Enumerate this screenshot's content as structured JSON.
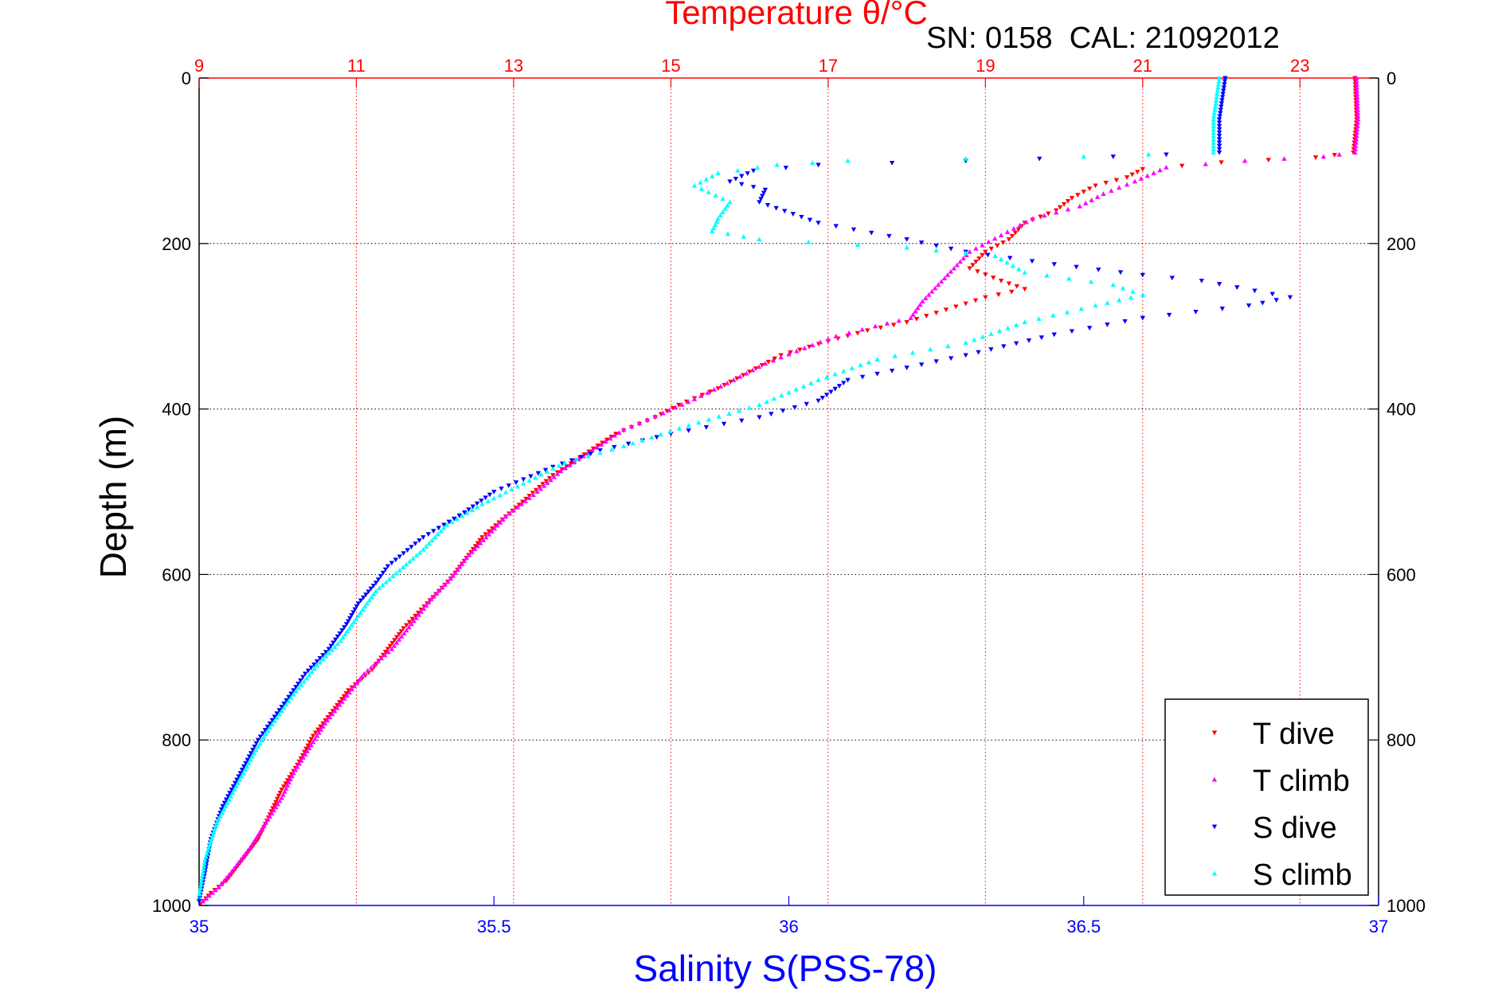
{
  "chart_data": {
    "type": "scatter",
    "top_axis": {
      "label": "Temperature θ/°C",
      "range": [
        9,
        24
      ],
      "ticks": [
        "9",
        "11",
        "13",
        "15",
        "17",
        "19",
        "21",
        "23"
      ],
      "color": "#ff0000"
    },
    "bottom_axis": {
      "label": "Salinity S(PSS-78)",
      "range": [
        35,
        37
      ],
      "ticks": [
        "35",
        "35.5",
        "36",
        "36.5",
        "37"
      ],
      "color": "#0000ff"
    },
    "y_axis": {
      "label": "Depth (m)",
      "range": [
        0,
        1000
      ],
      "reversed": true,
      "ticks": [
        "0",
        "200",
        "400",
        "600",
        "800",
        "1000"
      ]
    },
    "annotation": "SN: 0158  CAL: 21092012",
    "grid": true,
    "legend_position": "bottom-right",
    "series": [
      {
        "name": "T dive",
        "axis": "temperature",
        "color": "#ff0000",
        "marker": "triangle-down",
        "points": [
          [
            23.7,
            0
          ],
          [
            23.72,
            50
          ],
          [
            23.68,
            90
          ],
          [
            23.2,
            96
          ],
          [
            22.0,
            102
          ],
          [
            21.0,
            110
          ],
          [
            20.8,
            120
          ],
          [
            20.4,
            130
          ],
          [
            20.1,
            145
          ],
          [
            19.9,
            160
          ],
          [
            19.5,
            175
          ],
          [
            19.3,
            195
          ],
          [
            19.0,
            210
          ],
          [
            18.8,
            230
          ],
          [
            19.2,
            245
          ],
          [
            19.5,
            255
          ],
          [
            19.0,
            265
          ],
          [
            18.5,
            280
          ],
          [
            18.0,
            295
          ],
          [
            17.5,
            305
          ],
          [
            17.0,
            318
          ],
          [
            16.4,
            335
          ],
          [
            16.0,
            355
          ],
          [
            15.6,
            375
          ],
          [
            15.1,
            395
          ],
          [
            14.8,
            410
          ],
          [
            14.3,
            430
          ],
          [
            13.9,
            455
          ],
          [
            13.5,
            480
          ],
          [
            13.2,
            505
          ],
          [
            12.9,
            530
          ],
          [
            12.6,
            555
          ],
          [
            12.4,
            580
          ],
          [
            12.2,
            605
          ],
          [
            11.9,
            635
          ],
          [
            11.6,
            665
          ],
          [
            11.4,
            690
          ],
          [
            11.2,
            715
          ],
          [
            10.9,
            740
          ],
          [
            10.7,
            765
          ],
          [
            10.45,
            795
          ],
          [
            10.25,
            830
          ],
          [
            10.05,
            860
          ],
          [
            9.9,
            890
          ],
          [
            9.75,
            920
          ],
          [
            9.55,
            945
          ],
          [
            9.35,
            970
          ],
          [
            9.15,
            985
          ],
          [
            9.02,
            998
          ]
        ]
      },
      {
        "name": "T climb",
        "axis": "temperature",
        "color": "#ff00ff",
        "marker": "triangle-up",
        "points": [
          [
            23.72,
            0
          ],
          [
            23.74,
            50
          ],
          [
            23.7,
            90
          ],
          [
            23.3,
            95
          ],
          [
            22.3,
            100
          ],
          [
            21.3,
            108
          ],
          [
            20.9,
            125
          ],
          [
            20.5,
            140
          ],
          [
            20.2,
            155
          ],
          [
            19.6,
            170
          ],
          [
            19.2,
            190
          ],
          [
            18.8,
            210
          ],
          [
            18.6,
            230
          ],
          [
            18.4,
            250
          ],
          [
            18.2,
            270
          ],
          [
            18.05,
            290
          ],
          [
            17.6,
            300
          ],
          [
            17.1,
            312
          ],
          [
            16.6,
            330
          ],
          [
            16.2,
            345
          ],
          [
            15.8,
            365
          ],
          [
            15.3,
            388
          ],
          [
            14.9,
            405
          ],
          [
            14.4,
            425
          ],
          [
            14.0,
            450
          ],
          [
            13.6,
            475
          ],
          [
            13.3,
            500
          ],
          [
            12.9,
            530
          ],
          [
            12.65,
            555
          ],
          [
            12.4,
            580
          ],
          [
            12.2,
            605
          ],
          [
            11.95,
            630
          ],
          [
            11.7,
            660
          ],
          [
            11.45,
            690
          ],
          [
            11.1,
            720
          ],
          [
            10.85,
            750
          ],
          [
            10.6,
            780
          ],
          [
            10.4,
            810
          ],
          [
            10.2,
            840
          ],
          [
            10.05,
            870
          ],
          [
            9.85,
            900
          ],
          [
            9.65,
            930
          ],
          [
            9.45,
            955
          ],
          [
            9.25,
            978
          ],
          [
            9.05,
            995
          ]
        ]
      },
      {
        "name": "S dive",
        "axis": "salinity",
        "color": "#0000ff",
        "marker": "triangle-down",
        "points": [
          [
            36.74,
            0
          ],
          [
            36.73,
            50
          ],
          [
            36.73,
            90
          ],
          [
            36.55,
            95
          ],
          [
            36.3,
            100
          ],
          [
            36.05,
            105
          ],
          [
            35.94,
            112
          ],
          [
            35.9,
            125
          ],
          [
            35.96,
            135
          ],
          [
            35.95,
            150
          ],
          [
            36.05,
            175
          ],
          [
            36.2,
            195
          ],
          [
            36.3,
            210
          ],
          [
            36.45,
            225
          ],
          [
            36.6,
            238
          ],
          [
            36.7,
            245
          ],
          [
            36.85,
            265
          ],
          [
            36.78,
            275
          ],
          [
            36.6,
            290
          ],
          [
            36.45,
            310
          ],
          [
            36.3,
            335
          ],
          [
            36.2,
            350
          ],
          [
            36.1,
            365
          ],
          [
            36.05,
            390
          ],
          [
            35.95,
            410
          ],
          [
            35.8,
            430
          ],
          [
            35.68,
            450
          ],
          [
            35.6,
            470
          ],
          [
            35.5,
            500
          ],
          [
            35.45,
            525
          ],
          [
            35.38,
            555
          ],
          [
            35.32,
            590
          ],
          [
            35.3,
            610
          ],
          [
            35.27,
            635
          ],
          [
            35.25,
            660
          ],
          [
            35.22,
            690
          ],
          [
            35.18,
            720
          ],
          [
            35.14,
            760
          ],
          [
            35.1,
            800
          ],
          [
            35.07,
            840
          ],
          [
            35.04,
            880
          ],
          [
            35.02,
            920
          ],
          [
            35.01,
            960
          ],
          [
            35.0,
            995
          ]
        ]
      },
      {
        "name": "S climb",
        "axis": "salinity",
        "color": "#00ffff",
        "marker": "triangle-up",
        "points": [
          [
            36.73,
            0
          ],
          [
            36.72,
            50
          ],
          [
            36.72,
            90
          ],
          [
            36.5,
            95
          ],
          [
            36.1,
            100
          ],
          [
            35.98,
            105
          ],
          [
            35.88,
            115
          ],
          [
            35.84,
            130
          ],
          [
            35.9,
            150
          ],
          [
            35.88,
            170
          ],
          [
            35.87,
            185
          ],
          [
            35.95,
            195
          ],
          [
            36.2,
            205
          ],
          [
            36.35,
            215
          ],
          [
            36.4,
            235
          ],
          [
            36.55,
            250
          ],
          [
            36.6,
            262
          ],
          [
            36.52,
            275
          ],
          [
            36.4,
            295
          ],
          [
            36.3,
            320
          ],
          [
            36.15,
            340
          ],
          [
            36.05,
            365
          ],
          [
            35.95,
            395
          ],
          [
            35.83,
            420
          ],
          [
            35.72,
            445
          ],
          [
            35.62,
            465
          ],
          [
            35.55,
            490
          ],
          [
            35.48,
            515
          ],
          [
            35.42,
            540
          ],
          [
            35.38,
            570
          ],
          [
            35.34,
            595
          ],
          [
            35.3,
            620
          ],
          [
            35.27,
            650
          ],
          [
            35.24,
            680
          ],
          [
            35.2,
            710
          ],
          [
            35.16,
            745
          ],
          [
            35.12,
            785
          ],
          [
            35.09,
            820
          ],
          [
            35.06,
            860
          ],
          [
            35.03,
            900
          ],
          [
            35.01,
            945
          ],
          [
            35.0,
            990
          ]
        ]
      }
    ]
  }
}
